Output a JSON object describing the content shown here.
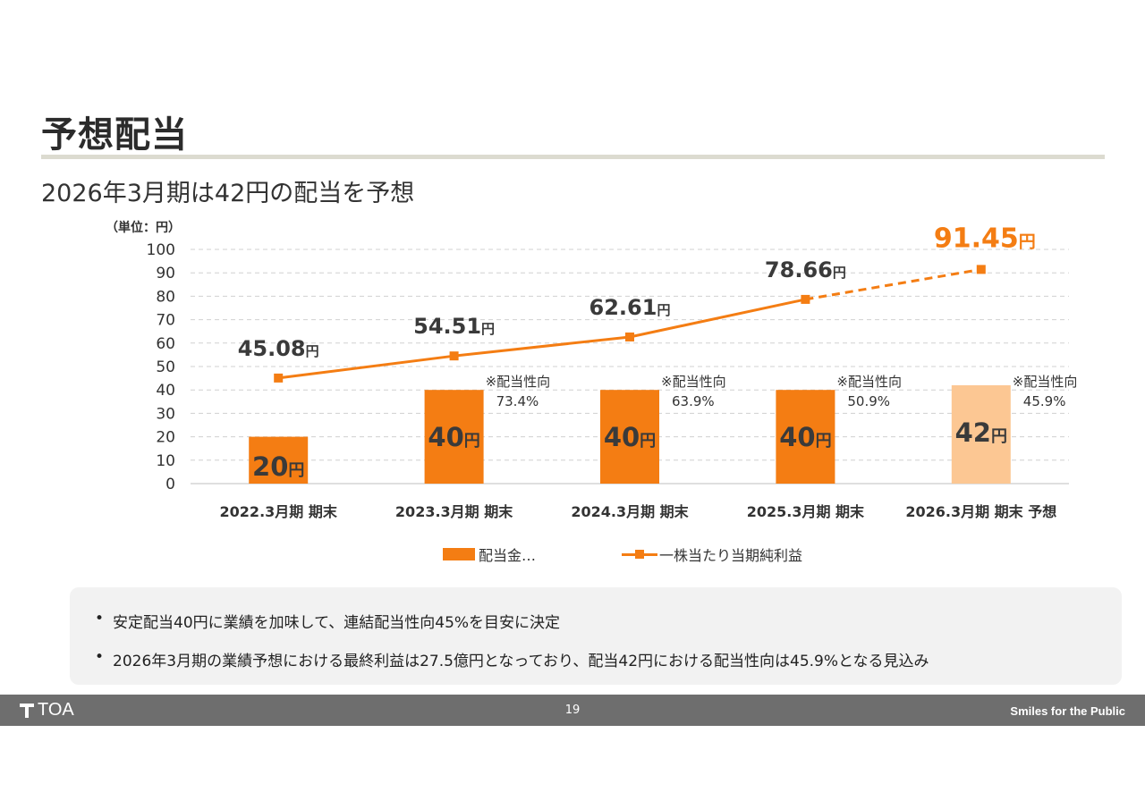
{
  "title": "予想配当",
  "subtitle": "2026年3月期は42円の配当を予想",
  "unit_label": "（単位：円）",
  "chart_data": {
    "type": "bar",
    "categories": [
      "2022.3月期 期末",
      "2023.3月期 期末",
      "2024.3月期 期末",
      "2025.3月期 期末",
      "2026.3月期 期末 予想"
    ],
    "ylim": [
      0,
      100
    ],
    "yticks": [
      0,
      10,
      20,
      30,
      40,
      50,
      60,
      70,
      80,
      90,
      100
    ],
    "grid": true,
    "series": [
      {
        "name": "配当金…",
        "type": "bar",
        "values": [
          20,
          40,
          40,
          40,
          42
        ],
        "labels": [
          "20",
          "40",
          "40",
          "40",
          "42"
        ],
        "colors": [
          "#f47d13",
          "#f47d13",
          "#f47d13",
          "#f47d13",
          "#fcc793"
        ],
        "payout_notes": [
          null,
          {
            "label": "※配当性向",
            "value": "73.4%"
          },
          {
            "label": "※配当性向",
            "value": "63.9%"
          },
          {
            "label": "※配当性向",
            "value": "50.9%"
          },
          {
            "label": "※配当性向",
            "value": "45.9%"
          }
        ]
      },
      {
        "name": "一株当たり当期純利益",
        "type": "line",
        "values": [
          45.08,
          54.51,
          62.61,
          78.66,
          91.45
        ],
        "labels": [
          "45.08",
          "54.51",
          "62.61",
          "78.66",
          "91.45"
        ],
        "forecast_from_index": 3,
        "color": "#f47d13"
      }
    ],
    "yen_suffix": "円",
    "legend_position": "bottom"
  },
  "notes": [
    "安定配当40円に業績を加味して、連結配当性向45%を目安に決定",
    "2026年3月期の業績予想における最終利益は27.5億円となっており、配当42円における配当性向は45.9%となる見込み"
  ],
  "bullet": "•",
  "footer": {
    "logo_text": "TOA",
    "page_number": "19",
    "slogan": "Smiles for the Public"
  },
  "colors": {
    "accent": "#f47d13",
    "forecast_bar": "#fcc793",
    "footer_bg": "#6e6e6e",
    "notes_bg": "#f2f2f2"
  }
}
